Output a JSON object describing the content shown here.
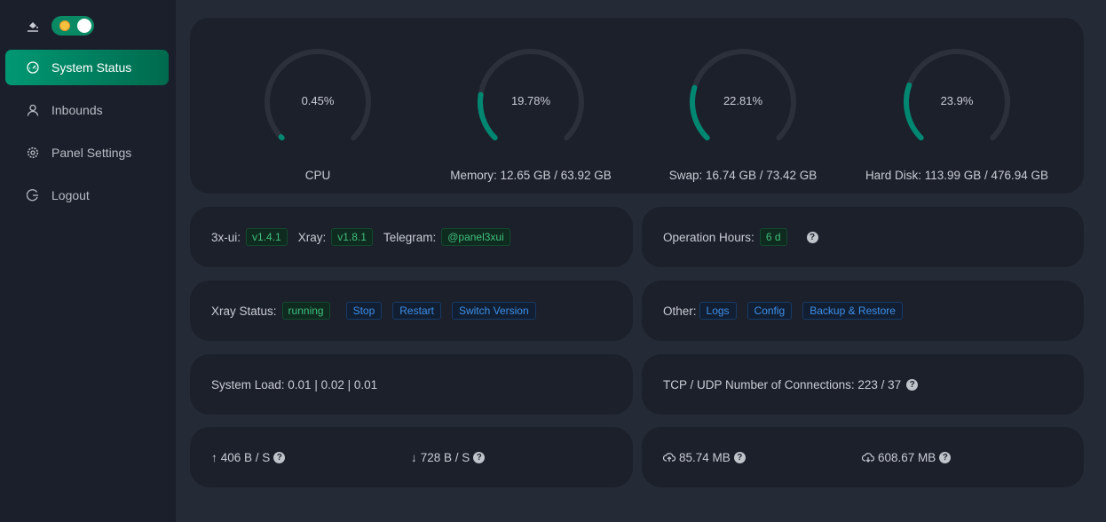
{
  "sidebar": {
    "items": [
      {
        "label": "System Status",
        "icon": "dashboard-icon",
        "active": true
      },
      {
        "label": "Inbounds",
        "icon": "user-icon"
      },
      {
        "label": "Panel Settings",
        "icon": "gear-icon"
      },
      {
        "label": "Logout",
        "icon": "logout-icon"
      }
    ],
    "theme_toggle": "on"
  },
  "colors": {
    "accent": "#008771",
    "track": "#2b303b"
  },
  "gauges": [
    {
      "value": "0.45%",
      "percent": 0.45,
      "label": "CPU"
    },
    {
      "value": "19.78%",
      "percent": 19.78,
      "label": "Memory: 12.65 GB / 63.92 GB"
    },
    {
      "value": "22.81%",
      "percent": 22.81,
      "label": "Swap: 16.74 GB / 73.42 GB"
    },
    {
      "value": "23.9%",
      "percent": 23.9,
      "label": "Hard Disk: 113.99 GB / 476.94 GB"
    }
  ],
  "versions": {
    "ui_label": "3x-ui:",
    "ui": "v1.4.1",
    "xray_label": "Xray:",
    "xray": "v1.8.1",
    "tg_label": "Telegram:",
    "tg": "@panel3xui"
  },
  "uptime": {
    "label": "Operation Hours:",
    "value": "6 d"
  },
  "xray": {
    "label": "Xray Status:",
    "status": "running",
    "stop": "Stop",
    "restart": "Restart",
    "switch": "Switch Version"
  },
  "other": {
    "label": "Other:",
    "logs": "Logs",
    "config": "Config",
    "backup": "Backup & Restore"
  },
  "load": {
    "text": "System Load: 0.01 | 0.02 | 0.01"
  },
  "conns": {
    "text": "TCP / UDP Number of Connections: 223 / 37"
  },
  "traffic": {
    "up": "406 B / S",
    "down": "728 B / S",
    "sent": "85.74 MB",
    "recv": "608.67 MB"
  }
}
